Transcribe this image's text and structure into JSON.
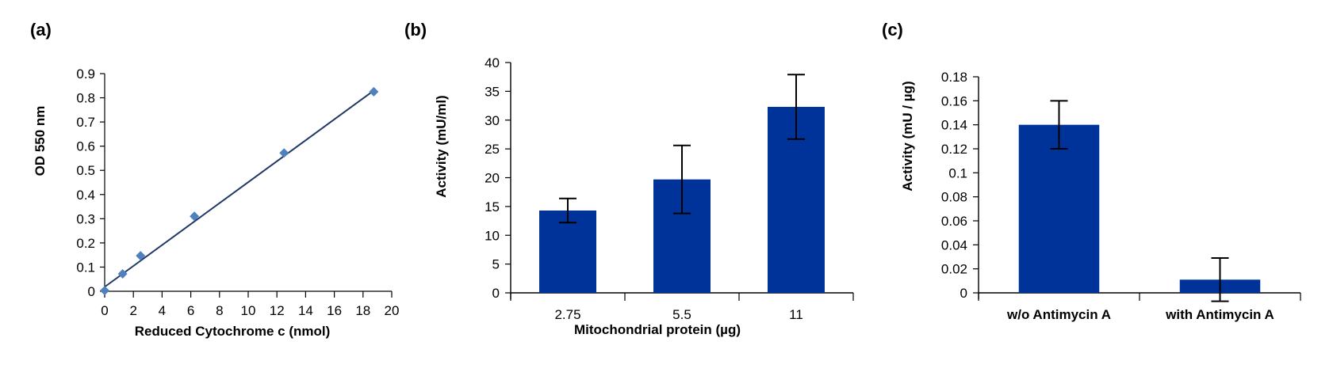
{
  "chart_data": [
    {
      "panel_label": "(a)",
      "type": "scatter",
      "xlabel": "Reduced Cytochrome c (nmol)",
      "ylabel": "OD 550 nm",
      "xlim": [
        0,
        20
      ],
      "ylim": [
        0,
        0.9
      ],
      "xticks": [
        "0",
        "2",
        "4",
        "6",
        "8",
        "10",
        "12",
        "14",
        "16",
        "18",
        "20"
      ],
      "yticks": [
        "0",
        "0.1",
        "0.2",
        "0.3",
        "0.4",
        "0.5",
        "0.6",
        "0.7",
        "0.8",
        "0.9"
      ],
      "x": [
        0,
        1.25,
        2.5,
        6.25,
        12.5,
        18.75
      ],
      "y": [
        0.003,
        0.072,
        0.147,
        0.31,
        0.572,
        0.825
      ],
      "trendline": {
        "x": [
          0,
          18.75
        ],
        "y": [
          0.018,
          0.83
        ]
      },
      "marker_color": "#4f81bd",
      "line_color": "#1f3864"
    },
    {
      "panel_label": "(b)",
      "type": "bar",
      "xlabel": "Mitochondrial protein  (µg)",
      "ylabel": "Activity  (mU/ml)",
      "ylim": [
        0,
        40
      ],
      "yticks": [
        "0",
        "5",
        "10",
        "15",
        "20",
        "25",
        "30",
        "35",
        "40"
      ],
      "categories": [
        "2.75",
        "5.5",
        "11"
      ],
      "values": [
        14.3,
        19.7,
        32.3
      ],
      "errors": [
        2.1,
        5.9,
        5.6
      ],
      "bar_color": "#003399"
    },
    {
      "panel_label": "(c)",
      "type": "bar",
      "xlabel": "",
      "ylabel": "Activity (mU / µg)",
      "ylim": [
        0,
        0.18
      ],
      "yticks": [
        "0",
        "0.02",
        "0.04",
        "0.06",
        "0.08",
        "0.1",
        "0.12",
        "0.14",
        "0.16",
        "0.18"
      ],
      "categories": [
        "w/o Antimycin A",
        "with Antimycin A"
      ],
      "values": [
        0.14,
        0.011
      ],
      "errors": [
        0.02,
        0.018
      ],
      "bar_color": "#003399"
    }
  ]
}
